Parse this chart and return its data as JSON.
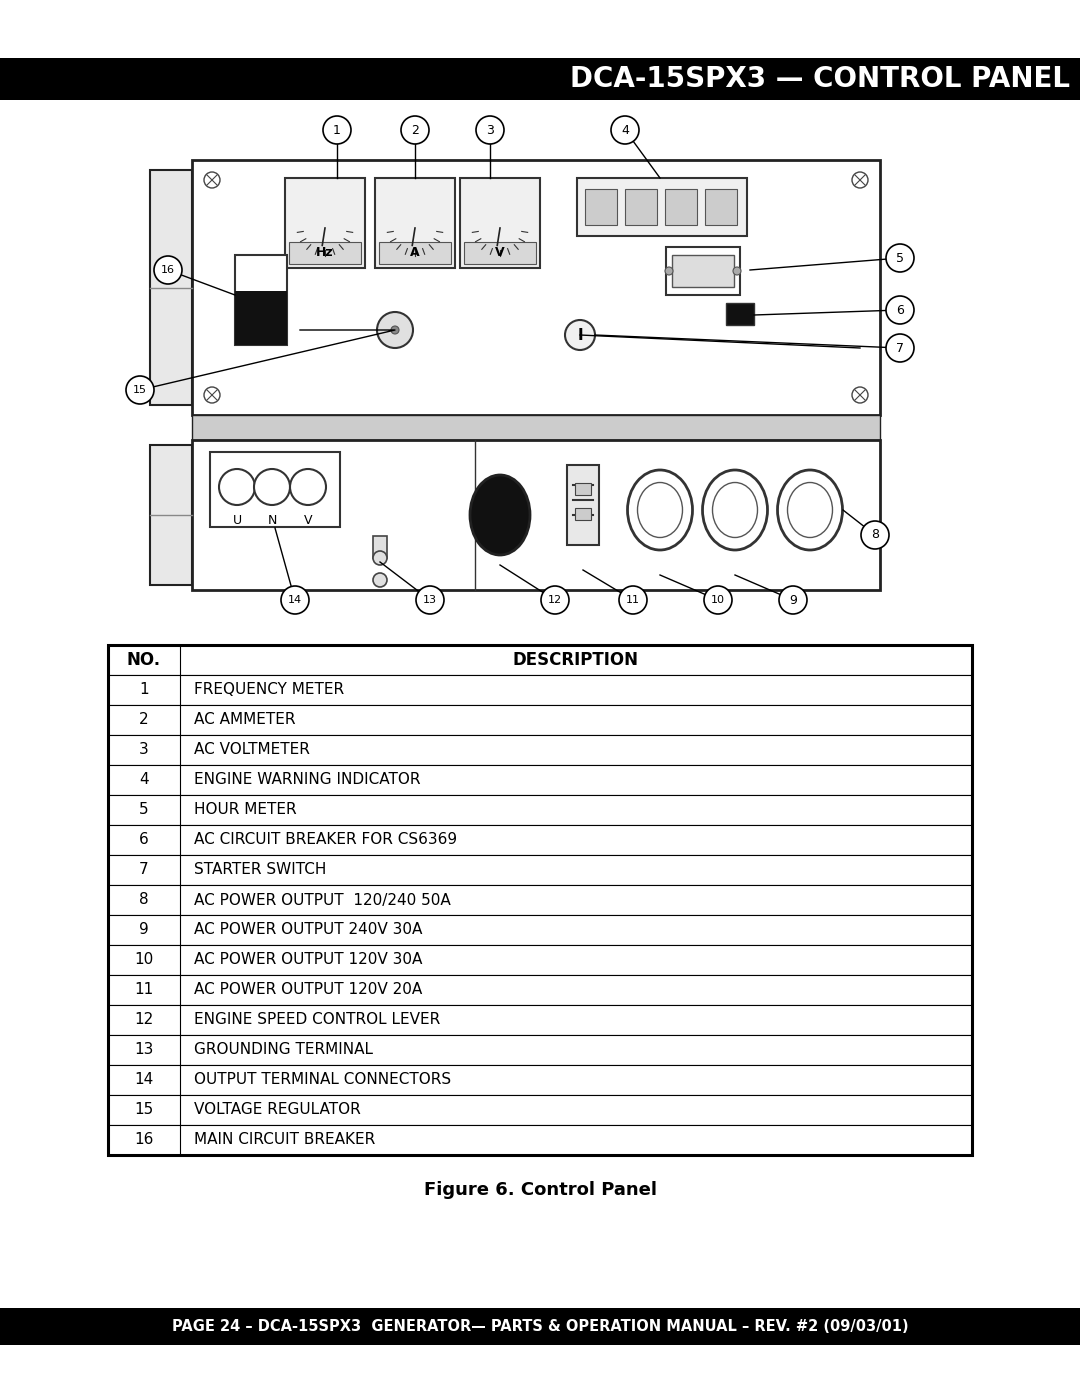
{
  "title": "DCA-15SPX3 — CONTROL PANEL",
  "footer": "PAGE 24 – DCA-15SPX3  GENERATOR— PARTS & OPERATION MANUAL – REV. #2 (09/03/01)",
  "figure_caption": "Figure 6. Control Panel",
  "table_headers": [
    "NO.",
    "DESCRIPTION"
  ],
  "table_rows": [
    [
      "1",
      "FREQUENCY METER"
    ],
    [
      "2",
      "AC AMMETER"
    ],
    [
      "3",
      "AC VOLTMETER"
    ],
    [
      "4",
      "ENGINE WARNING INDICATOR"
    ],
    [
      "5",
      "HOUR METER"
    ],
    [
      "6",
      "AC CIRCUIT BREAKER FOR CS6369"
    ],
    [
      "7",
      "STARTER SWITCH"
    ],
    [
      "8",
      "AC POWER OUTPUT  120/240 50A"
    ],
    [
      "9",
      "AC POWER OUTPUT 240V 30A"
    ],
    [
      "10",
      "AC POWER OUTPUT 120V 30A"
    ],
    [
      "11",
      "AC POWER OUTPUT 120V 20A"
    ],
    [
      "12",
      "ENGINE SPEED CONTROL LEVER"
    ],
    [
      "13",
      "GROUNDING TERMINAL"
    ],
    [
      "14",
      "OUTPUT TERMINAL CONNECTORS"
    ],
    [
      "15",
      "VOLTAGE REGULATOR"
    ],
    [
      "16",
      "MAIN CIRCUIT BREAKER"
    ]
  ],
  "bg_color": "#ffffff",
  "header_bg": "#000000",
  "header_text": "#ffffff",
  "footer_bg": "#000000",
  "footer_text": "#ffffff"
}
